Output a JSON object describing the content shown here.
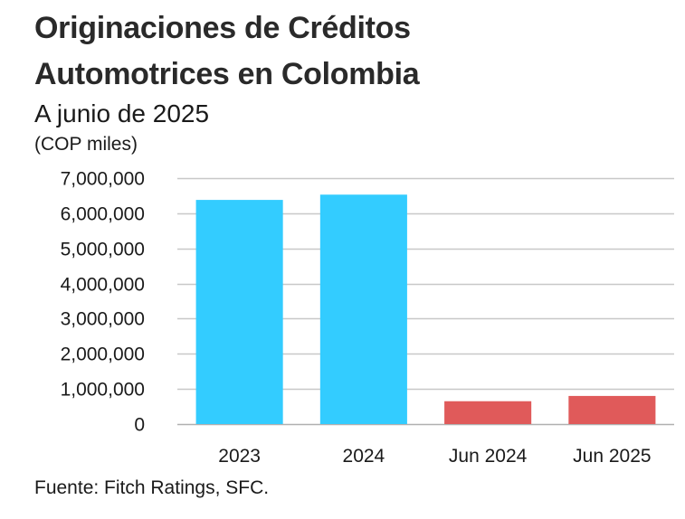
{
  "header": {
    "title_line1": "Originaciones de Créditos",
    "title_line2": "Automotrices en Colombia",
    "subtitle": "A junio de 2025",
    "unit": "(COP miles)"
  },
  "footer": {
    "source": "Fuente: Fitch Ratings, SFC."
  },
  "chart_data": {
    "type": "bar",
    "title": "Originaciones de Créditos Automotrices en Colombia",
    "subtitle": "A junio de 2025",
    "ylabel": "(COP miles)",
    "xlabel": "",
    "categories": [
      "2023",
      "2024",
      "Jun 2024",
      "Jun 2025"
    ],
    "values": [
      6380000,
      6530000,
      650000,
      800000
    ],
    "bar_colors": [
      "#33ccff",
      "#33ccff",
      "#e05a5a",
      "#e05a5a"
    ],
    "ylim": [
      0,
      7000000
    ],
    "yticks": [
      0,
      1000000,
      2000000,
      3000000,
      4000000,
      5000000,
      6000000,
      7000000
    ],
    "ytick_labels": [
      "0",
      "1,000,000",
      "2,000,000",
      "3,000,000",
      "4,000,000",
      "5,000,000",
      "6,000,000",
      "7,000,000"
    ],
    "grid": true,
    "legend": "none",
    "grid_color": "#c8c8c8"
  }
}
